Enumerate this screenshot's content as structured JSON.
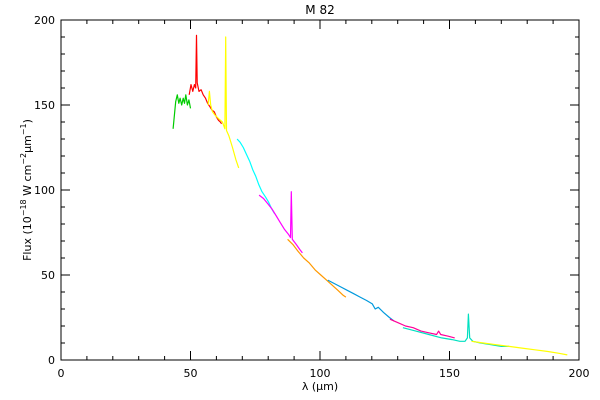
{
  "chart_data": {
    "type": "line",
    "title": "M 82",
    "xlabel_prefix": "λ (",
    "xlabel_unit_mu": "μ",
    "xlabel_suffix": "m)",
    "ylabel_main": "Flux (10",
    "ylabel_exp1": "−18",
    "ylabel_mid": " W cm",
    "ylabel_exp2": "−2",
    "ylabel_mu": "μ",
    "ylabel_m": "m",
    "ylabel_exp3": "−1",
    "ylabel_end": ")",
    "xlim": [
      0,
      200
    ],
    "ylim": [
      0,
      200
    ],
    "xticks": [
      0,
      50,
      100,
      150,
      200
    ],
    "yticks": [
      0,
      50,
      100,
      150,
      200
    ],
    "xminor_step": 10,
    "yminor_step": 10,
    "grid": false,
    "series": [
      {
        "color": "#00cc00",
        "points": [
          [
            43.3,
            136
          ],
          [
            43.8,
            144
          ],
          [
            44.3,
            152
          ],
          [
            44.9,
            156
          ],
          [
            45.5,
            151
          ],
          [
            46.0,
            154
          ],
          [
            46.6,
            150
          ],
          [
            47.2,
            154
          ],
          [
            47.7,
            151
          ],
          [
            48.2,
            156
          ],
          [
            48.8,
            150
          ],
          [
            49.4,
            153
          ],
          [
            50.0,
            148
          ]
        ]
      },
      {
        "color": "#ff0000",
        "points": [
          [
            49.5,
            156
          ],
          [
            50.2,
            162
          ],
          [
            50.9,
            158
          ],
          [
            51.5,
            162
          ],
          [
            52.0,
            160
          ],
          [
            52.3,
            191
          ],
          [
            52.6,
            163
          ],
          [
            53.3,
            158
          ],
          [
            54.1,
            159
          ],
          [
            54.9,
            156
          ],
          [
            55.8,
            154
          ],
          [
            56.6,
            151
          ],
          [
            57.5,
            149
          ],
          [
            58.3,
            147
          ],
          [
            59.2,
            146
          ],
          [
            60.0,
            143
          ],
          [
            60.8,
            141
          ],
          [
            61.5,
            140
          ],
          [
            62.0,
            139
          ]
        ]
      },
      {
        "color": "#ffff00",
        "points": [
          [
            56.8,
            150
          ],
          [
            57.3,
            158
          ],
          [
            57.8,
            150
          ],
          [
            58.5,
            146
          ],
          [
            59.5,
            144
          ],
          [
            60.8,
            142
          ],
          [
            62.3,
            140
          ],
          [
            63.3,
            136
          ],
          [
            63.6,
            190
          ],
          [
            63.9,
            135
          ],
          [
            64.8,
            132
          ],
          [
            66.2,
            125
          ],
          [
            67.5,
            118
          ],
          [
            68.6,
            113
          ]
        ]
      },
      {
        "color": "#00ffff",
        "points": [
          [
            68.0,
            130
          ],
          [
            69.2,
            128
          ],
          [
            70.4,
            125
          ],
          [
            71.6,
            121
          ],
          [
            72.8,
            117
          ],
          [
            74.0,
            112
          ],
          [
            75.2,
            108
          ],
          [
            76.4,
            103
          ],
          [
            77.6,
            99
          ],
          [
            78.9,
            96
          ],
          [
            80.1,
            93
          ],
          [
            81.3,
            89
          ],
          [
            82.5,
            86
          ]
        ]
      },
      {
        "color": "#ff00ff",
        "points": [
          [
            76.5,
            97
          ],
          [
            78.2,
            95
          ],
          [
            79.8,
            92
          ],
          [
            81.4,
            89
          ],
          [
            83.0,
            85
          ],
          [
            84.6,
            81
          ],
          [
            86.2,
            77
          ],
          [
            87.8,
            74
          ],
          [
            88.6,
            72
          ],
          [
            88.9,
            99
          ],
          [
            89.3,
            71
          ],
          [
            90.8,
            68
          ],
          [
            92.2,
            65
          ],
          [
            93.2,
            63
          ]
        ]
      },
      {
        "color": "#ff9900",
        "points": [
          [
            87.5,
            71
          ],
          [
            89.5,
            68
          ],
          [
            91.5,
            64
          ],
          [
            93.7,
            60
          ],
          [
            95.9,
            57
          ],
          [
            98.1,
            53
          ],
          [
            100.3,
            50
          ],
          [
            102.5,
            47
          ],
          [
            104.7,
            44
          ],
          [
            106.9,
            41
          ],
          [
            109.0,
            38
          ],
          [
            110.0,
            37
          ]
        ]
      },
      {
        "color": "#0099dd",
        "points": [
          [
            103.0,
            47
          ],
          [
            105.5,
            45
          ],
          [
            108.0,
            43
          ],
          [
            110.5,
            41
          ],
          [
            113.0,
            39
          ],
          [
            115.5,
            37
          ],
          [
            118.0,
            35
          ],
          [
            120.2,
            33
          ],
          [
            121.3,
            30
          ],
          [
            122.5,
            31
          ],
          [
            124.5,
            28
          ],
          [
            126.8,
            25
          ],
          [
            128.5,
            23
          ]
        ]
      },
      {
        "color": "#ff0099",
        "points": [
          [
            127.0,
            24
          ],
          [
            130.0,
            22
          ],
          [
            133.0,
            20
          ],
          [
            136.0,
            19
          ],
          [
            139.0,
            17
          ],
          [
            142.0,
            16
          ],
          [
            145.0,
            15
          ],
          [
            145.8,
            17
          ],
          [
            146.6,
            15
          ],
          [
            149.5,
            14
          ],
          [
            152.0,
            13
          ]
        ]
      },
      {
        "color": "#00e0c0",
        "points": [
          [
            132.0,
            19
          ],
          [
            137.0,
            17
          ],
          [
            142.0,
            15
          ],
          [
            147.0,
            13
          ],
          [
            151.0,
            12
          ],
          [
            154.0,
            11
          ],
          [
            156.0,
            11
          ],
          [
            156.9,
            13
          ],
          [
            157.3,
            27
          ],
          [
            157.8,
            13
          ],
          [
            159.0,
            11
          ],
          [
            162.0,
            10
          ],
          [
            166.0,
            9
          ],
          [
            170.0,
            8
          ],
          [
            173.0,
            8
          ]
        ]
      },
      {
        "color": "#ffff00",
        "points": [
          [
            158.5,
            11
          ],
          [
            163.0,
            10
          ],
          [
            168.0,
            9
          ],
          [
            173.0,
            8
          ],
          [
            178.0,
            7
          ],
          [
            183.0,
            6
          ],
          [
            188.0,
            5
          ],
          [
            192.0,
            4
          ],
          [
            195.5,
            3
          ]
        ]
      }
    ]
  }
}
